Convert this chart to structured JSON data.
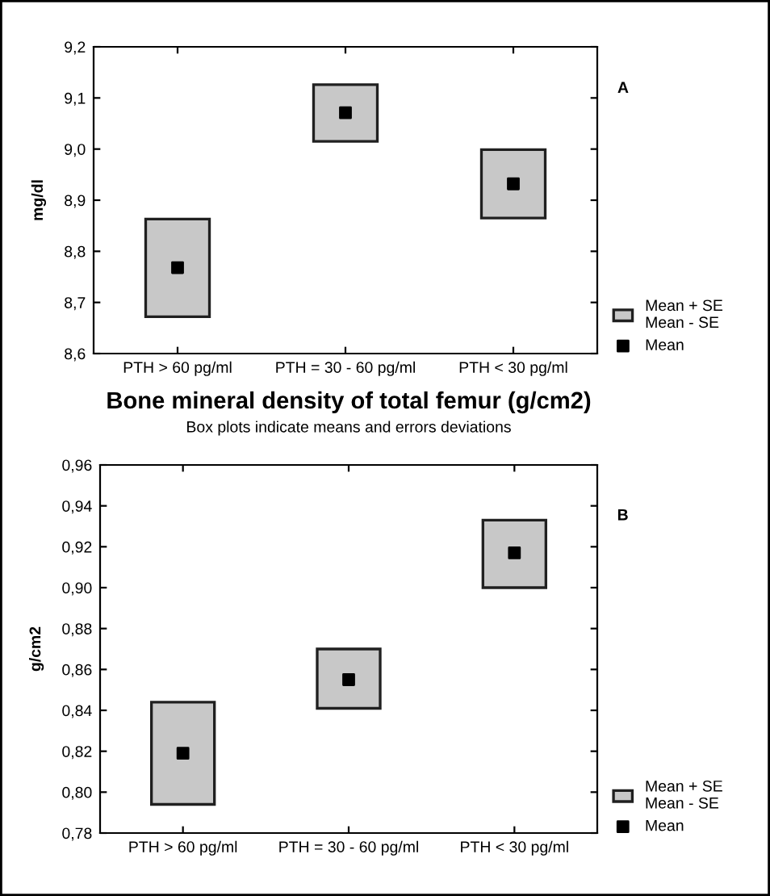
{
  "chart_data": [
    {
      "type": "bar",
      "categories": [
        "PTH > 60 pg/ml",
        "PTH = 30 - 60 pg/ml",
        "PTH < 30 pg/ml"
      ],
      "ylabel": "mg/dl",
      "series": [
        {
          "name": "Mean + SE\nMean - SE",
          "color": "#c8c8c8",
          "values": [
            0.191,
            0.111,
            0.134
          ],
          "base": [
            8.672,
            9.015,
            8.865
          ]
        },
        {
          "name": "Mean",
          "type": "scatter",
          "color": "#000000",
          "x": [
            "PTH > 60 pg/ml",
            "PTH = 30 - 60 pg/ml",
            "PTH < 30 pg/ml"
          ],
          "values": [
            8.768,
            9.071,
            8.932
          ]
        }
      ],
      "ylim": [
        8.6,
        9.2
      ],
      "yticks": [
        {
          "value": 8.6,
          "label": "8,6"
        },
        {
          "value": 8.7,
          "label": "8,7"
        },
        {
          "value": 8.8,
          "label": "8,8"
        },
        {
          "value": 8.9,
          "label": "8,9"
        },
        {
          "value": 9.0,
          "label": "9,0"
        },
        {
          "value": 9.1,
          "label": "9,1"
        },
        {
          "value": 9.2,
          "label": "9,2"
        }
      ],
      "annotations": [
        "A"
      ],
      "legend": "bottom right",
      "marker": "square",
      "grid": false
    },
    {
      "type": "bar",
      "title": "Bone mineral density of total femur (g/cm2)",
      "subtitle": "Box plots indicate means and errors deviations",
      "categories": [
        "PTH > 60 pg/ml",
        "PTH = 30 - 60 pg/ml",
        "PTH < 30 pg/ml"
      ],
      "ylabel": "g/cm2",
      "series": [
        {
          "name": "Mean + SE\nMean - SE",
          "color": "#c8c8c8",
          "values": [
            0.05,
            0.029,
            0.033
          ],
          "base": [
            0.794,
            0.841,
            0.9
          ]
        },
        {
          "name": "Mean",
          "type": "scatter",
          "color": "#000000",
          "x": [
            "PTH > 60 pg/ml",
            "PTH = 30 - 60 pg/ml",
            "PTH < 30 pg/ml"
          ],
          "values": [
            0.819,
            0.855,
            0.917
          ]
        }
      ],
      "ylim": [
        0.78,
        0.96
      ],
      "yticks": [
        {
          "value": 0.78,
          "label": "0,78"
        },
        {
          "value": 0.8,
          "label": "0,80"
        },
        {
          "value": 0.82,
          "label": "0,82"
        },
        {
          "value": 0.84,
          "label": "0,84"
        },
        {
          "value": 0.86,
          "label": "0,86"
        },
        {
          "value": 0.88,
          "label": "0,88"
        },
        {
          "value": 0.9,
          "label": "0,90"
        },
        {
          "value": 0.92,
          "label": "0,92"
        },
        {
          "value": 0.94,
          "label": "0,94"
        },
        {
          "value": 0.96,
          "label": "0,96"
        }
      ],
      "annotations": [
        "B"
      ],
      "legend": "bottom right",
      "marker": "square",
      "grid": false
    }
  ]
}
